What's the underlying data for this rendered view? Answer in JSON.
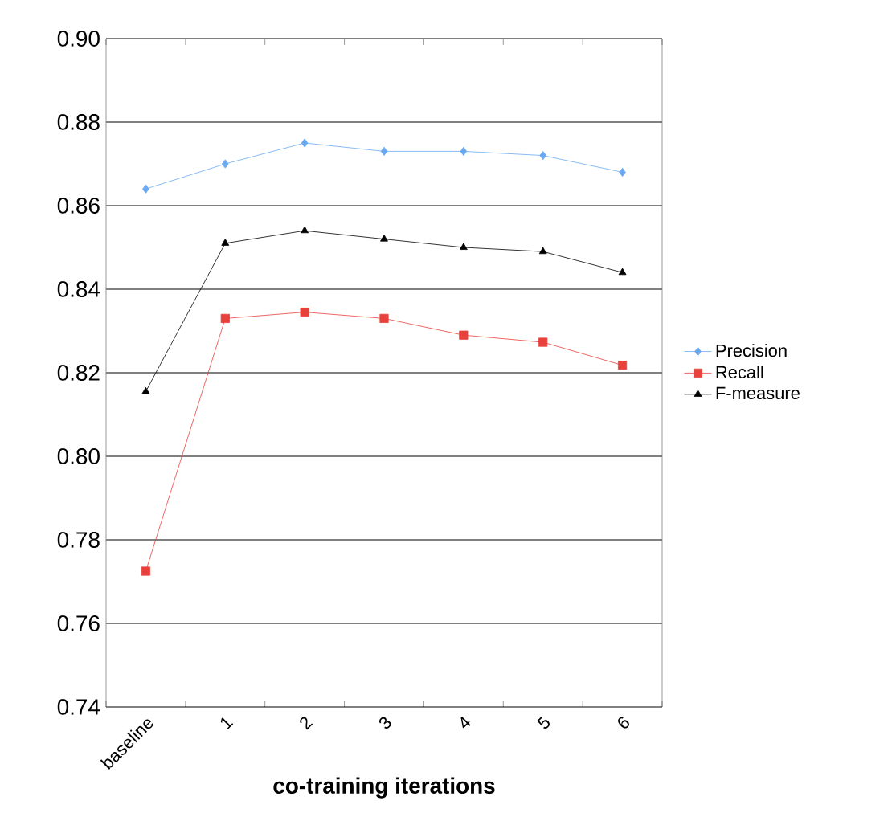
{
  "chart_data": {
    "type": "line",
    "xlabel": "co-training iterations",
    "categories": [
      "baseline",
      "1",
      "2",
      "3",
      "4",
      "5",
      "6"
    ],
    "series": [
      {
        "name": "Precision",
        "color": "#6aa9f2",
        "marker": "diamond",
        "values": [
          0.864,
          0.87,
          0.875,
          0.873,
          0.873,
          0.872,
          0.868
        ]
      },
      {
        "name": "Recall",
        "color": "#e8413c",
        "marker": "square",
        "values": [
          0.7725,
          0.833,
          0.8345,
          0.833,
          0.829,
          0.8273,
          0.8218
        ]
      },
      {
        "name": "F-measure",
        "color": "#000000",
        "marker": "triangle",
        "values": [
          0.8155,
          0.851,
          0.854,
          0.852,
          0.85,
          0.849,
          0.844
        ]
      }
    ],
    "ylim": [
      0.74,
      0.9
    ],
    "yticks": [
      0.74,
      0.76,
      0.78,
      {
        "value": 0.8,
        "label": "0.80"
      },
      0.82,
      0.84,
      0.86,
      0.88,
      {
        "value": 0.9,
        "label": "0.90"
      }
    ],
    "grid": "y",
    "legend": "right",
    "line_style": "solid"
  }
}
